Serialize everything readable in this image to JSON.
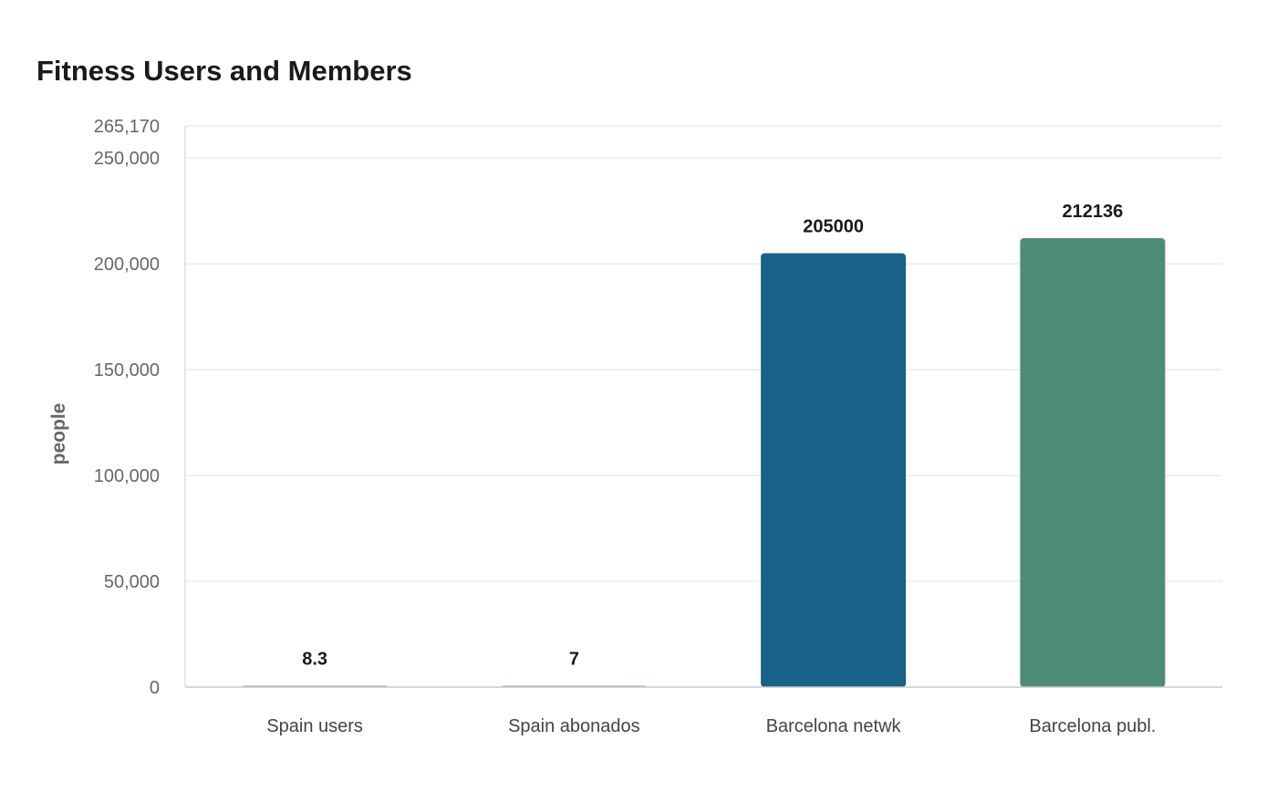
{
  "chart_data": {
    "type": "bar",
    "title": "Fitness Users and Members",
    "xlabel": "",
    "ylabel": "people",
    "categories": [
      "Spain users",
      "Spain abonados",
      "Barcelona netwk",
      "Barcelona publ."
    ],
    "values": [
      8.3,
      7,
      205000,
      212136
    ],
    "value_labels": [
      "8.3",
      "7",
      "205000",
      "212136"
    ],
    "colors": [
      "#7a9a9a",
      "#7a9a9a",
      "#186187",
      "#4e8c7a"
    ],
    "ylim": [
      0,
      265170
    ],
    "yticks": [
      0,
      50000,
      100000,
      150000,
      200000,
      250000,
      265170
    ],
    "ytick_labels": [
      "0",
      "50,000",
      "100,000",
      "150,000",
      "200,000",
      "250,000",
      "265,170"
    ],
    "grid": true,
    "legend": "none"
  }
}
